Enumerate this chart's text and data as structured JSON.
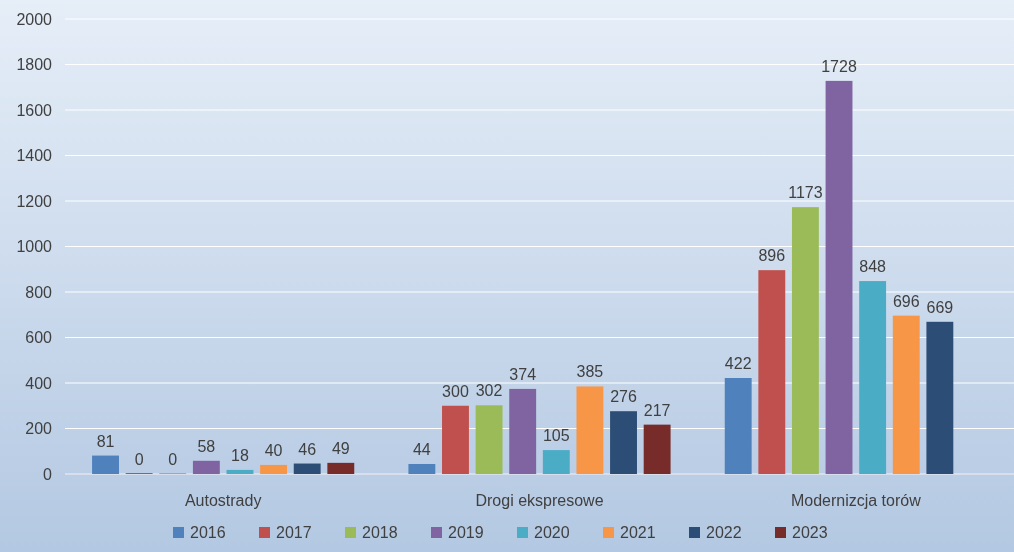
{
  "chart_data": {
    "type": "bar",
    "categories": [
      "Autostrady",
      "Drogi ekspresowe",
      "Modernizcja torów"
    ],
    "series": [
      {
        "name": "2016",
        "color": "#4f81bd",
        "values": [
          81,
          44,
          422
        ]
      },
      {
        "name": "2017",
        "color": "#c0504d",
        "values": [
          0,
          300,
          896
        ]
      },
      {
        "name": "2018",
        "color": "#9bbb59",
        "values": [
          0,
          302,
          1173
        ]
      },
      {
        "name": "2019",
        "color": "#8064a2",
        "values": [
          58,
          374,
          1728
        ]
      },
      {
        "name": "2020",
        "color": "#4bacc6",
        "values": [
          18,
          105,
          848
        ]
      },
      {
        "name": "2021",
        "color": "#f79646",
        "values": [
          40,
          385,
          696
        ]
      },
      {
        "name": "2022",
        "color": "#2c4d75",
        "values": [
          46,
          276,
          669
        ]
      },
      {
        "name": "2023",
        "color": "#772c2a",
        "values": [
          49,
          217,
          null
        ]
      }
    ],
    "ylim": [
      0,
      2000
    ],
    "yticks": [
      0,
      200,
      400,
      600,
      800,
      1000,
      1200,
      1400,
      1600,
      1800,
      2000
    ],
    "grid": "y",
    "legend": "bottom",
    "data_labels": true
  }
}
